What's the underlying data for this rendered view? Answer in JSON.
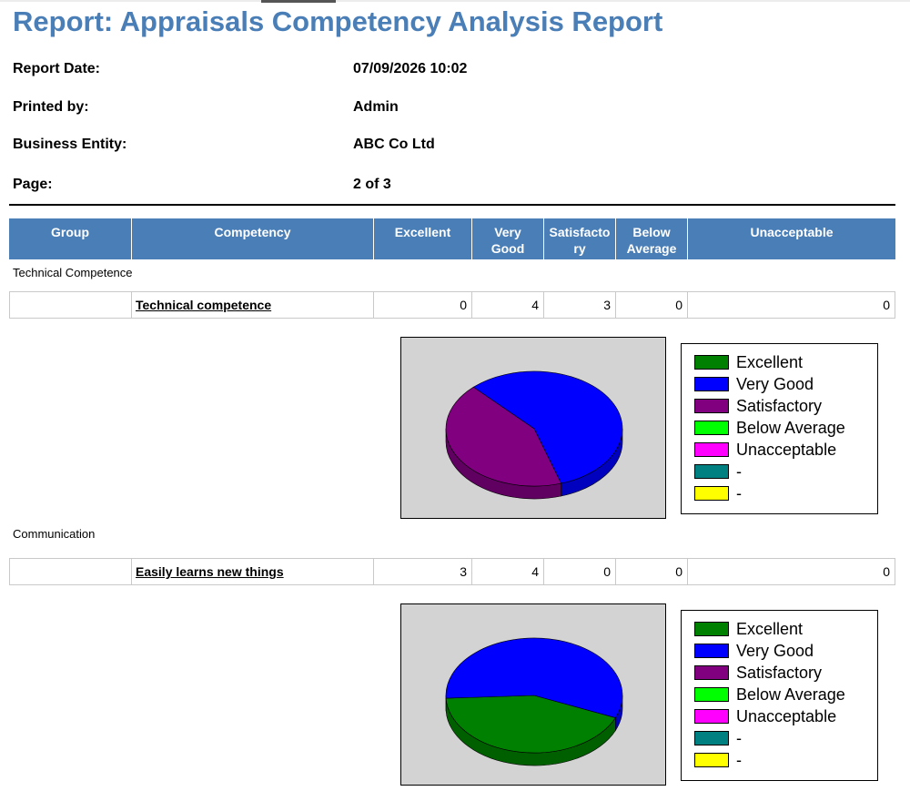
{
  "report": {
    "title": "Report: Appraisals Competency Analysis Report",
    "meta": [
      {
        "label": "Report Date:",
        "value": "07/09/2026 10:02"
      },
      {
        "label": "Printed by:",
        "value": "Admin"
      },
      {
        "label": "Business Entity:",
        "value": "ABC Co Ltd"
      },
      {
        "label": "Page:",
        "value": "2 of 3"
      }
    ]
  },
  "table": {
    "headers": [
      "Group",
      "Competency",
      "Excellent",
      "Very Good",
      "Satisfactory",
      "Below Average",
      "Unacceptable"
    ]
  },
  "groups": [
    {
      "name": "Technical Competence",
      "competency": "Technical competence",
      "counts": {
        "excellent": 0,
        "very_good": 4,
        "satisfactory": 3,
        "below_average": 0,
        "unacceptable": 0
      }
    },
    {
      "name": "Communication",
      "competency": "Easily learns new things",
      "counts": {
        "excellent": 3,
        "very_good": 4,
        "satisfactory": 0,
        "below_average": 0,
        "unacceptable": 0
      }
    }
  ],
  "legend": [
    {
      "label": "Excellent",
      "color": "#008000"
    },
    {
      "label": "Very Good",
      "color": "#0000ff"
    },
    {
      "label": "Satisfactory",
      "color": "#800080"
    },
    {
      "label": "Below Average",
      "color": "#00ff00"
    },
    {
      "label": "Unacceptable",
      "color": "#ff00ff"
    },
    {
      "label": "-",
      "color": "#008080"
    },
    {
      "label": "-",
      "color": "#ffff00"
    }
  ],
  "chart_data": [
    {
      "type": "pie",
      "categories": [
        "Excellent",
        "Very Good",
        "Satisfactory",
        "Below Average",
        "Unacceptable"
      ],
      "values": [
        0,
        4,
        3,
        0,
        0
      ]
    },
    {
      "type": "pie",
      "categories": [
        "Excellent",
        "Very Good",
        "Satisfactory",
        "Below Average",
        "Unacceptable"
      ],
      "values": [
        3,
        4,
        0,
        0,
        0
      ]
    }
  ]
}
